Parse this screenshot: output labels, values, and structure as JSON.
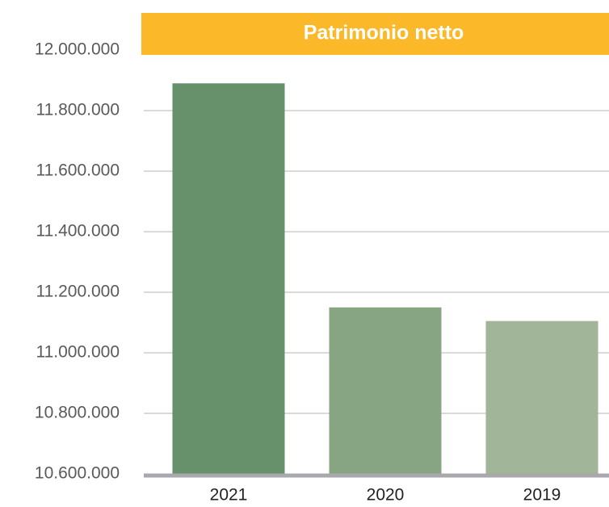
{
  "chart_data": {
    "type": "bar",
    "title": "Patrimonio netto",
    "categories": [
      "2021",
      "2020",
      "2019"
    ],
    "values": [
      11890000,
      11150000,
      11105000
    ],
    "colors": [
      "#67916a",
      "#88a583",
      "#a1b698"
    ],
    "ylim": [
      10600000,
      12000000
    ],
    "yticks": [
      {
        "value": 10600000,
        "label": "10.600.000"
      },
      {
        "value": 10800000,
        "label": "10.800.000"
      },
      {
        "value": 11000000,
        "label": "11.000.000"
      },
      {
        "value": 11200000,
        "label": "11.200.000"
      },
      {
        "value": 11400000,
        "label": "11.400.000"
      },
      {
        "value": 11600000,
        "label": "11.600.000"
      },
      {
        "value": 11800000,
        "label": "11.800.000"
      },
      {
        "value": 12000000,
        "label": "12.000.000"
      }
    ],
    "grid": true
  }
}
